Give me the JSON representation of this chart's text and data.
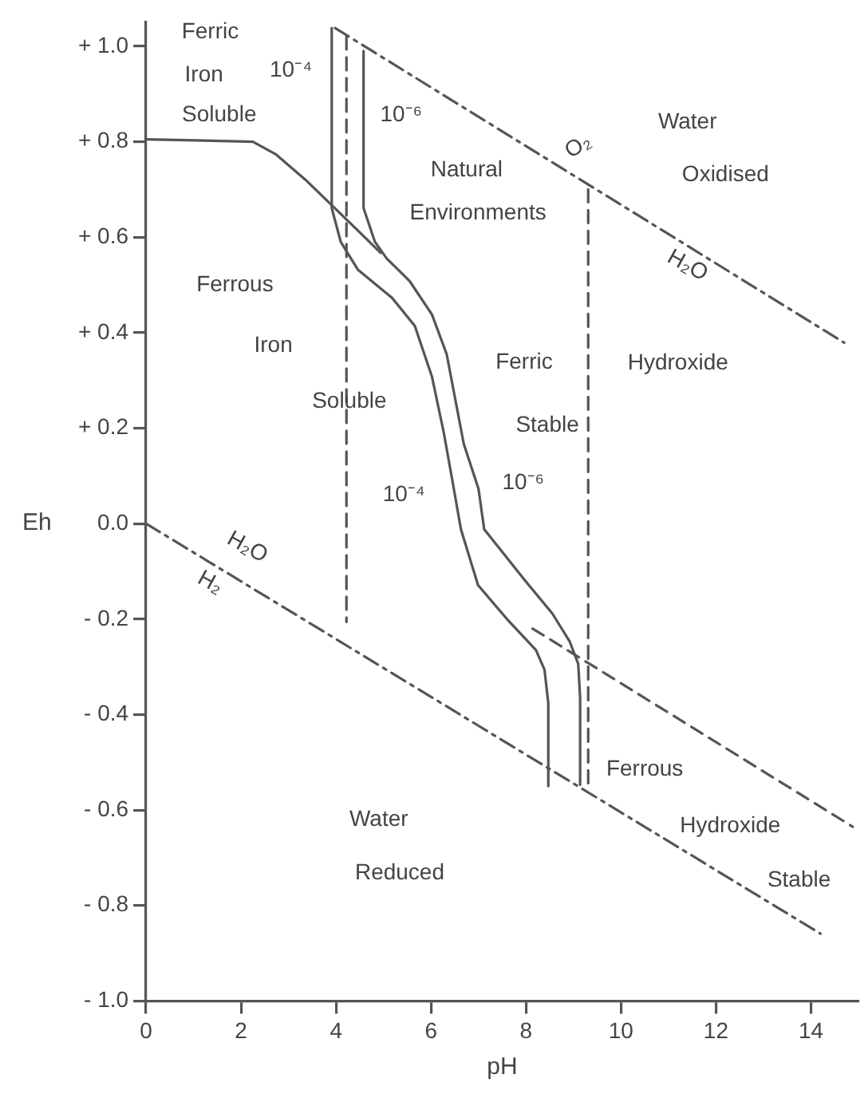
{
  "chart_data": {
    "type": "line",
    "xlabel": "pH",
    "ylabel": "Eh",
    "xlim": [
      0,
      15
    ],
    "xticks": [
      0,
      2,
      4,
      6,
      8,
      10,
      12,
      14
    ],
    "ylim": [
      -1.0,
      1.05
    ],
    "yticks": [
      {
        "value": 1.0,
        "label": "+ 1.0"
      },
      {
        "value": 0.8,
        "label": "+ 0.8"
      },
      {
        "value": 0.6,
        "label": "+ 0.6"
      },
      {
        "value": 0.4,
        "label": "+ 0.4"
      },
      {
        "value": 0.2,
        "label": "+ 0.2"
      },
      {
        "value": 0,
        "label": "0.0"
      },
      {
        "value": -0.2,
        "label": "- 0.2"
      },
      {
        "value": -0.4,
        "label": "- 0.4"
      },
      {
        "value": -0.6,
        "label": "- 0.6"
      },
      {
        "value": -0.8,
        "label": "- 0.8"
      },
      {
        "value": -1.0,
        "label": "- 1.0"
      }
    ],
    "grid": false,
    "legend": false,
    "marker": "none",
    "series": [
      {
        "color": "#555555",
        "line_style": "solid",
        "x": [
          0,
          2.25,
          2.74,
          3.36,
          3.91,
          4.46,
          4.94
        ],
        "values": [
          0.805,
          0.8,
          0.773,
          0.72,
          0.667,
          0.614,
          0.567
        ]
      },
      {
        "color": "#555555",
        "line_style": "solid",
        "x": [
          3.91,
          3.91,
          4.1,
          4.46,
          5.18,
          5.66,
          6.02,
          6.27,
          6.45,
          6.63,
          6.99,
          7.6,
          8.21,
          8.39,
          8.47,
          8.47
        ],
        "values": [
          1.038,
          0.661,
          0.59,
          0.532,
          0.473,
          0.414,
          0.308,
          0.19,
          0.09,
          -0.012,
          -0.129,
          -0.2,
          -0.265,
          -0.306,
          -0.376,
          -0.55
        ]
      },
      {
        "color": "#555555",
        "line_style": "solid",
        "x": [
          4.58,
          4.58,
          4.82,
          5.07,
          5.55,
          6.02,
          6.33,
          6.51,
          6.69,
          7.0,
          7.12,
          7.97,
          8.56,
          8.92,
          9.1,
          9.14,
          9.14
        ],
        "values": [
          0.99,
          0.661,
          0.59,
          0.555,
          0.508,
          0.438,
          0.355,
          0.261,
          0.167,
          0.073,
          -0.012,
          -0.118,
          -0.189,
          -0.247,
          -0.294,
          -0.365,
          -0.547
        ]
      },
      {
        "color": "#555555",
        "line_style": "dashdot",
        "x": [
          3.98,
          14.7
        ],
        "values": [
          1.038,
          0.379
        ]
      },
      {
        "color": "#555555",
        "line_style": "dashdot",
        "x": [
          0,
          14.2
        ],
        "values": [
          0,
          -0.859
        ]
      },
      {
        "color": "#555555",
        "line_style": "dashed",
        "x": [
          4.22,
          4.22
        ],
        "values": [
          1.02,
          -0.206
        ]
      },
      {
        "color": "#555555",
        "line_style": "dashed",
        "x": [
          9.31,
          9.31
        ],
        "values": [
          0.7,
          -0.553
        ]
      },
      {
        "color": "#555555",
        "line_style": "dashed",
        "x": [
          8.14,
          14.88
        ],
        "values": [
          -0.22,
          -0.635
        ]
      }
    ],
    "annotations": [
      "Ferric",
      "Iron",
      "Soluble",
      "10⁻⁴",
      "10⁻⁶",
      "O₂",
      "Water",
      "Oxidised",
      "Natural",
      "Environments",
      "H₂O",
      "Ferrous",
      "Iron",
      "Soluble",
      "Ferric",
      "Hydroxide",
      "Stable",
      "10⁻⁴",
      "10⁻⁶",
      "H₂O",
      "H₂",
      "Ferrous",
      "Hydroxide",
      "Stable",
      "Water",
      "Reduced"
    ]
  }
}
